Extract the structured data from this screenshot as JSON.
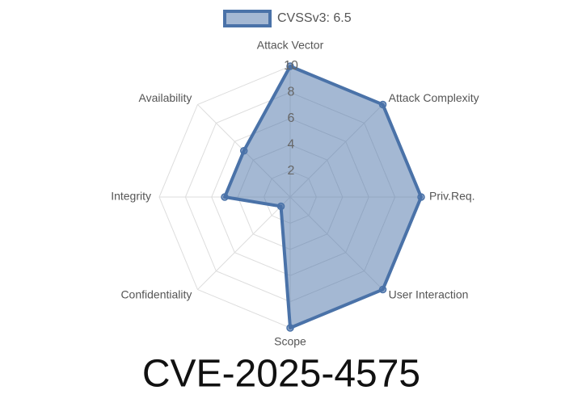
{
  "chart_data": {
    "type": "radar",
    "title": "CVE-2025-4575",
    "categories": [
      "Attack Vector",
      "Attack Complexity",
      "Priv.Req.",
      "User Interaction",
      "Scope",
      "Confidentiality",
      "Integrity",
      "Availability"
    ],
    "series": [
      {
        "name": "CVSSv3: 6.5",
        "color": "#4a72a8",
        "values": [
          10,
          10,
          10,
          10,
          10,
          1,
          5,
          5
        ]
      }
    ],
    "rlim": [
      0,
      10
    ],
    "rticks": [
      2,
      4,
      6,
      8,
      10
    ],
    "grid": true,
    "legend": "top"
  }
}
